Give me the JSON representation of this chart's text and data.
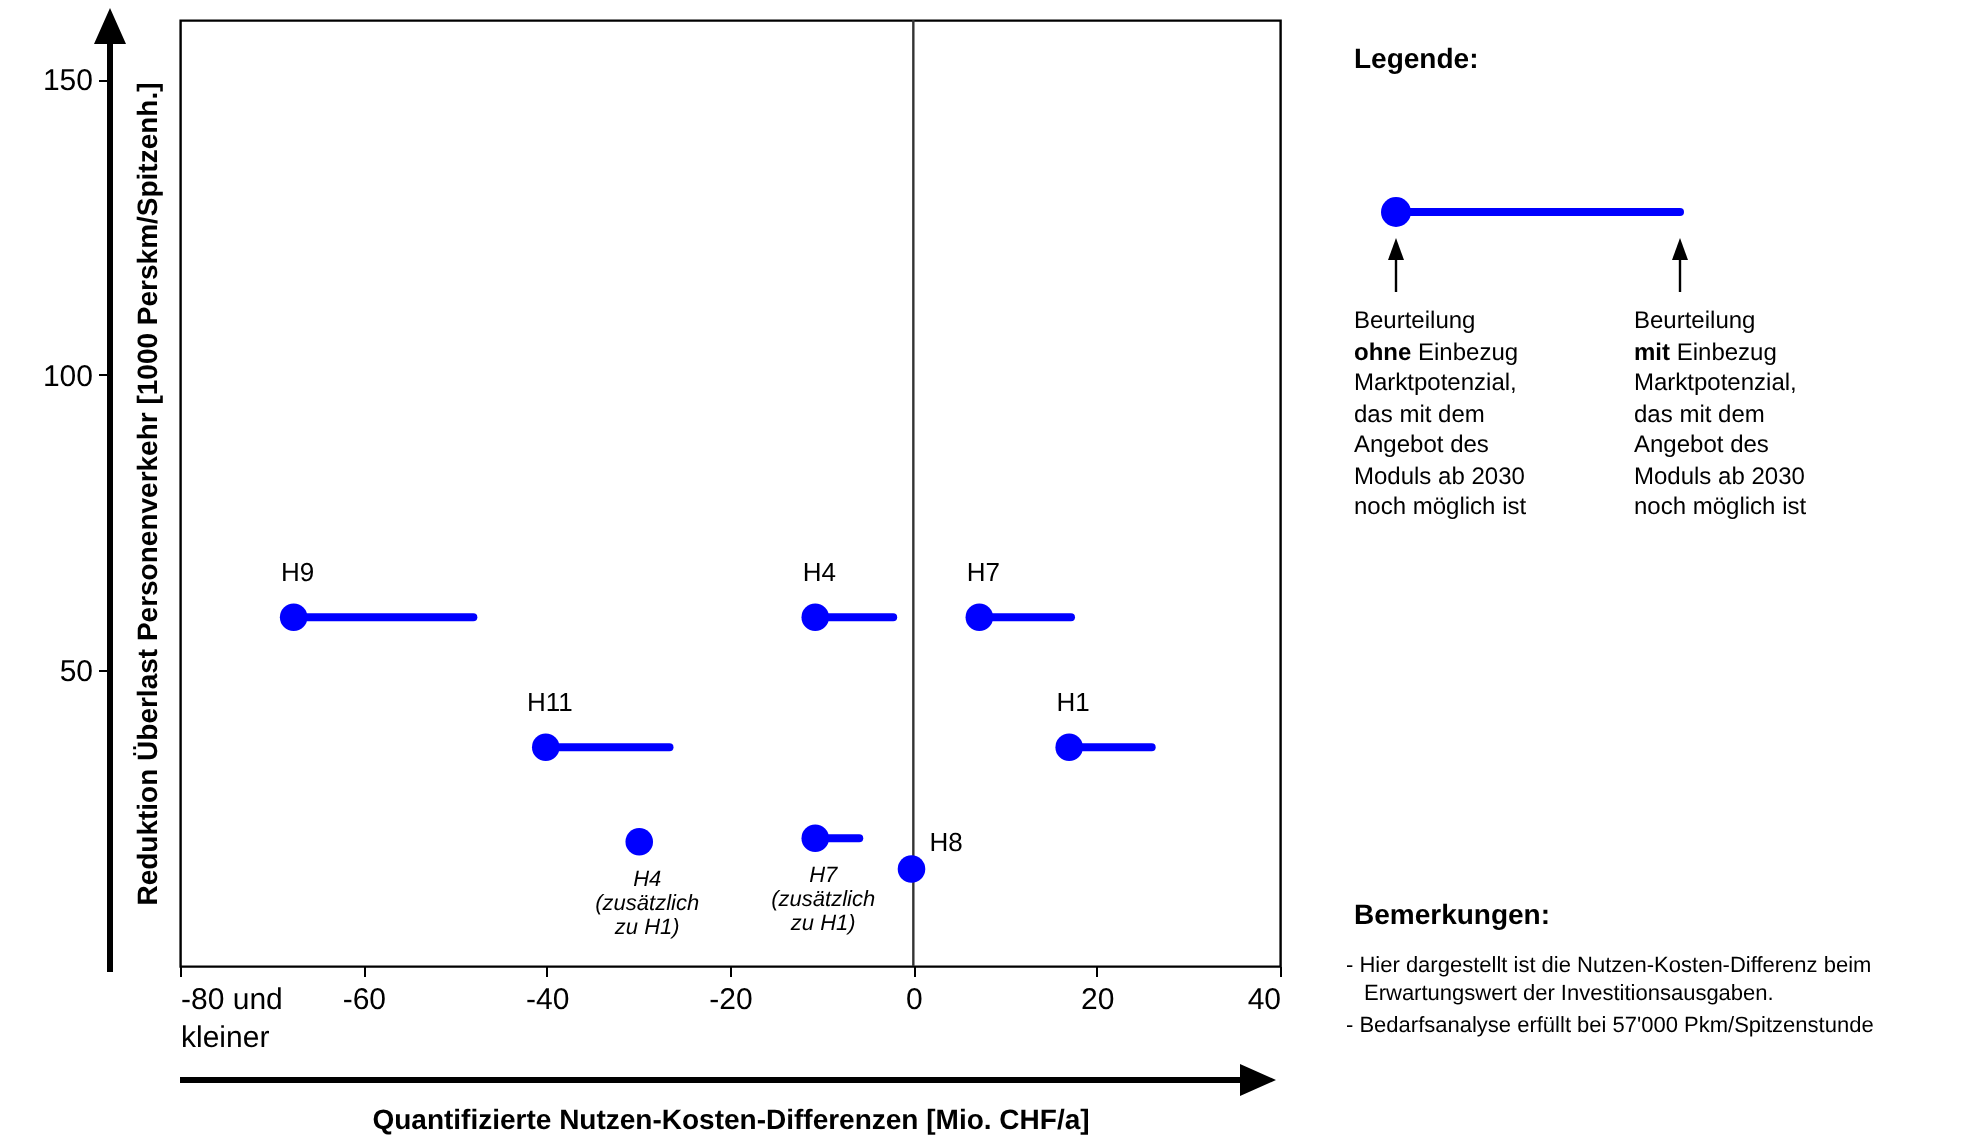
{
  "chart_data": {
    "type": "scatter",
    "xlabel": "Quantifizierte Nutzen-Kosten-Differenzen [Mio. CHF/a]",
    "ylabel": "Reduktion Überlast Personenverkehr [1000 Perskm/Spitzenh.]",
    "xlim": [
      -80,
      40
    ],
    "xticks": [
      {
        "value": -80,
        "label": "-80 und kleiner"
      },
      -60,
      -40,
      -20,
      0,
      20,
      40
    ],
    "ylim": [
      0,
      160
    ],
    "yticks": [
      50,
      100,
      150
    ],
    "grid": false,
    "marker": "circle",
    "series": [
      {
        "type": "scatter",
        "color": "#0000ff",
        "x": [
          -67.6,
          -10.7,
          7.2,
          -40.1,
          17,
          -29.9,
          -10.7,
          -0.2
        ],
        "values": [
          59,
          59,
          59,
          37,
          37,
          21,
          21.6,
          16.4
        ]
      },
      {
        "type": "line",
        "marker": "none",
        "color": "#0000ff",
        "x": [
          -67.6,
          -48
        ],
        "values": [
          59,
          59
        ]
      },
      {
        "type": "line",
        "marker": "none",
        "color": "#0000ff",
        "x": [
          -10.7,
          -2.2
        ],
        "values": [
          59,
          59
        ]
      },
      {
        "type": "line",
        "marker": "none",
        "color": "#0000ff",
        "x": [
          7.2,
          17.2
        ],
        "values": [
          59,
          59
        ]
      },
      {
        "type": "line",
        "marker": "none",
        "color": "#0000ff",
        "x": [
          -40.1,
          -26.6
        ],
        "values": [
          37,
          37
        ]
      },
      {
        "type": "line",
        "marker": "none",
        "color": "#0000ff",
        "x": [
          17,
          26
        ],
        "values": [
          37,
          37
        ]
      },
      {
        "type": "line",
        "marker": "none",
        "color": "#0000ff",
        "x": [
          -10.7,
          -5.9
        ],
        "values": [
          21.6,
          21.6
        ]
      }
    ],
    "ref_lines": [
      {
        "axis": "x",
        "value": 0,
        "color": "#333333"
      }
    ],
    "annotations": [
      {
        "text": "H9",
        "x": -67.6,
        "y": 59
      },
      {
        "text": "H4",
        "x": -10.7,
        "y": 59
      },
      {
        "text": "H7",
        "x": 7.2,
        "y": 59
      },
      {
        "text": "H11",
        "x": -40.1,
        "y": 37
      },
      {
        "text": "H1",
        "x": 17,
        "y": 37
      },
      {
        "text": "H4 (zusätzlich zu H1)",
        "x": -29.9,
        "y": 21
      },
      {
        "text": "H7 (zusätzlich zu H1)",
        "x": -10.7,
        "y": 21.6
      },
      {
        "text": "H8",
        "x": -0.2,
        "y": 16.4
      },
      "Legende:",
      "Beurteilung ohne Einbezug Marktpotenzial, das mit dem Angebot des Moduls ab 2030 noch möglich ist",
      "Beurteilung mit Einbezug Marktpotenzial, das mit dem Angebot des Moduls ab 2030 noch möglich ist",
      "Bemerkungen:",
      "- Hier dargestellt ist die Nutzen-Kosten-Differenz beim Erwartungswert der Investitionsausgaben.",
      "- Bedarfsanalyse erfüllt bei 57'000 Pkm/Spitzenstunde"
    ]
  }
}
